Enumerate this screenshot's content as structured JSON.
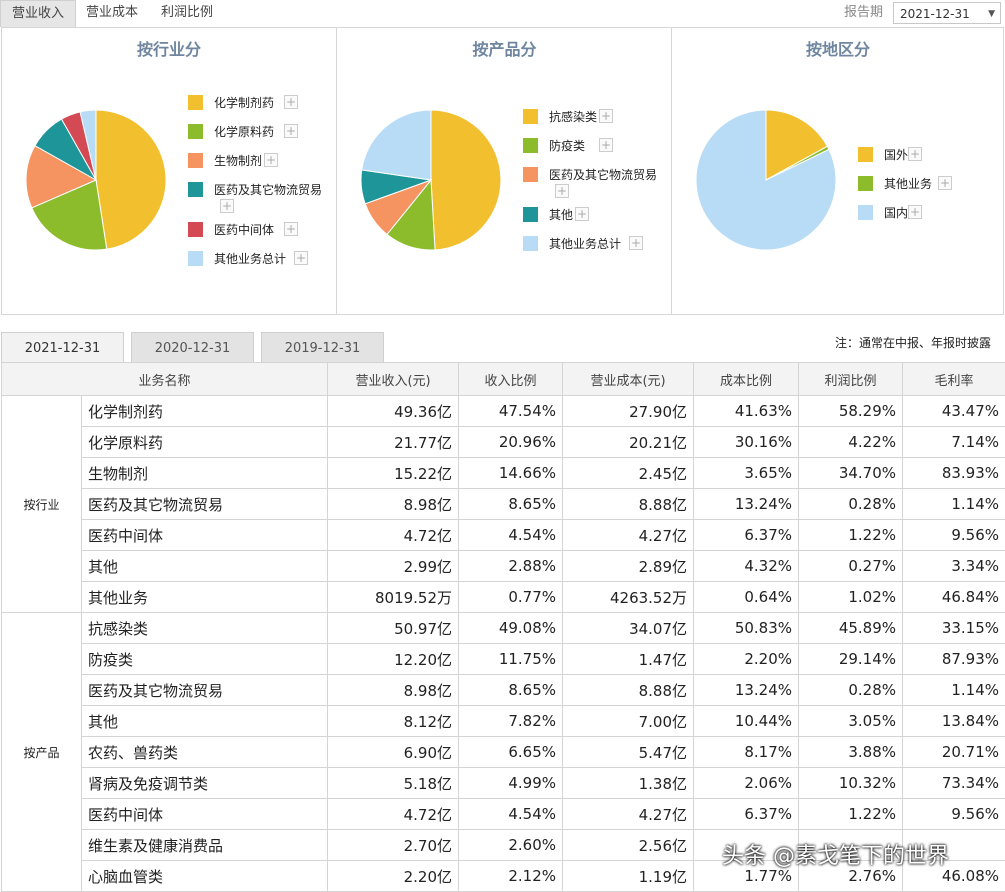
{
  "tabs": [
    "营业收入",
    "营业成本",
    "利润比例"
  ],
  "report_period": {
    "label": "报告期",
    "value": "2021-12-31"
  },
  "panels": [
    {
      "title": "按行业分",
      "legend": [
        "化学制剂药",
        "化学原料药",
        "生物制剂",
        "医药及其它物流贸易",
        "医药中间体",
        "其他业务总计"
      ],
      "colors": [
        "#f2bf2f",
        "#8cbc2c",
        "#f59461",
        "#1e9599",
        "#d44a54",
        "#b8dcf6"
      ],
      "values": [
        47.54,
        20.96,
        14.66,
        8.65,
        4.54,
        3.65
      ]
    },
    {
      "title": "按产品分",
      "legend": [
        "抗感染类",
        "防疫类",
        "医药及其它物流贸易",
        "其他",
        "其他业务总计"
      ],
      "colors": [
        "#f2bf2f",
        "#8cbc2c",
        "#f59461",
        "#1e9599",
        "#b8dcf6"
      ],
      "values": [
        49.08,
        11.75,
        8.65,
        7.82,
        22.7
      ]
    },
    {
      "title": "按地区分",
      "legend": [
        "国外",
        "其他业务",
        "国内"
      ],
      "colors": [
        "#f2bf2f",
        "#8cbc2c",
        "#b8dcf6"
      ],
      "values": [
        17.0,
        0.8,
        82.2
      ]
    }
  ],
  "year_tabs": [
    "2021-12-31",
    "2020-12-31",
    "2019-12-31"
  ],
  "note": "注：通常在中报、年报时披露",
  "table": {
    "headers": [
      "业务名称",
      "营业收入(元)",
      "收入比例",
      "营业成本(元)",
      "成本比例",
      "利润比例",
      "毛利率"
    ],
    "groups": [
      {
        "name": "按行业",
        "rows": [
          [
            "化学制剂药",
            "49.36亿",
            "47.54%",
            "27.90亿",
            "41.63%",
            "58.29%",
            "43.47%"
          ],
          [
            "化学原料药",
            "21.77亿",
            "20.96%",
            "20.21亿",
            "30.16%",
            "4.22%",
            "7.14%"
          ],
          [
            "生物制剂",
            "15.22亿",
            "14.66%",
            "2.45亿",
            "3.65%",
            "34.70%",
            "83.93%"
          ],
          [
            "医药及其它物流贸易",
            "8.98亿",
            "8.65%",
            "8.88亿",
            "13.24%",
            "0.28%",
            "1.14%"
          ],
          [
            "医药中间体",
            "4.72亿",
            "4.54%",
            "4.27亿",
            "6.37%",
            "1.22%",
            "9.56%"
          ],
          [
            "其他",
            "2.99亿",
            "2.88%",
            "2.89亿",
            "4.32%",
            "0.27%",
            "3.34%"
          ],
          [
            "其他业务",
            "8019.52万",
            "0.77%",
            "4263.52万",
            "0.64%",
            "1.02%",
            "46.84%"
          ]
        ]
      },
      {
        "name": "按产品",
        "rows": [
          [
            "抗感染类",
            "50.97亿",
            "49.08%",
            "34.07亿",
            "50.83%",
            "45.89%",
            "33.15%"
          ],
          [
            "防疫类",
            "12.20亿",
            "11.75%",
            "1.47亿",
            "2.20%",
            "29.14%",
            "87.93%"
          ],
          [
            "医药及其它物流贸易",
            "8.98亿",
            "8.65%",
            "8.88亿",
            "13.24%",
            "0.28%",
            "1.14%"
          ],
          [
            "其他",
            "8.12亿",
            "7.82%",
            "7.00亿",
            "10.44%",
            "3.05%",
            "13.84%"
          ],
          [
            "农药、兽药类",
            "6.90亿",
            "6.65%",
            "5.47亿",
            "8.17%",
            "3.88%",
            "20.71%"
          ],
          [
            "肾病及免疫调节类",
            "5.18亿",
            "4.99%",
            "1.38亿",
            "2.06%",
            "10.32%",
            "73.34%"
          ],
          [
            "医药中间体",
            "4.72亿",
            "4.54%",
            "4.27亿",
            "6.37%",
            "1.22%",
            "9.56%"
          ],
          [
            "维生素及健康消费品",
            "2.70亿",
            "2.60%",
            "2.56亿",
            "",
            "",
            ""
          ],
          [
            "心脑血管类",
            "2.20亿",
            "2.12%",
            "1.19亿",
            "1.77%",
            "2.76%",
            "46.08%"
          ]
        ]
      }
    ]
  },
  "watermark": "头条 @素戈笔下的世界"
}
